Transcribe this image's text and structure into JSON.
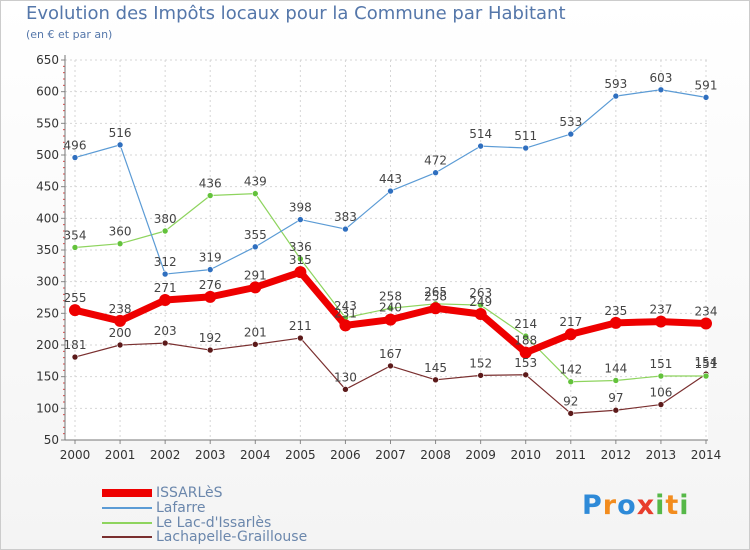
{
  "header": {
    "title": "Evolution des Impôts locaux pour la Commune par Habitant",
    "subtitle": "(en € et par an)"
  },
  "logo": {
    "letters": [
      "P",
      "r",
      "o",
      "x",
      "i",
      "t",
      "i"
    ],
    "colors": [
      "#2e8ad8",
      "#f28c1e",
      "#2e8ad8",
      "#e83d2c",
      "#56b848",
      "#f28c1e",
      "#56b848"
    ]
  },
  "chart_data": {
    "type": "line",
    "title": "Evolution des Impôts locaux pour la Commune par Habitant",
    "subtitle": "(en € et par an)",
    "xlabel": "",
    "ylabel": "",
    "categories": [
      "2000",
      "2001",
      "2002",
      "2003",
      "2004",
      "2005",
      "2006",
      "2007",
      "2008",
      "2009",
      "2010",
      "2011",
      "2012",
      "2013",
      "2014"
    ],
    "ylim": [
      50,
      650
    ],
    "yticks": [
      50,
      100,
      150,
      200,
      250,
      300,
      350,
      400,
      450,
      500,
      550,
      600,
      650
    ],
    "grid": true,
    "legend_position": "bottom-left",
    "series": [
      {
        "name": "ISSARLèS",
        "color": "#ee0000",
        "marker": "#ee0000",
        "width": 7,
        "markerRadius": 6,
        "values": [
          255,
          238,
          271,
          276,
          291,
          315,
          231,
          240,
          258,
          249,
          188,
          217,
          235,
          237,
          234
        ],
        "labels": [
          "255",
          "238",
          "271",
          "276",
          "291",
          "315",
          "231",
          "240",
          "258",
          "249",
          "188",
          "217",
          "235",
          "237",
          "234"
        ]
      },
      {
        "name": "Lafarre",
        "color": "#5b9bd5",
        "marker": "#2f6fbf",
        "width": 1.2,
        "markerRadius": 3,
        "values": [
          496,
          516,
          312,
          319,
          355,
          398,
          383,
          443,
          472,
          514,
          511,
          533,
          593,
          603,
          591
        ],
        "labels": [
          "496",
          "516",
          "312",
          "319",
          "355",
          "398",
          "383",
          "443",
          "472",
          "514",
          "511",
          "533",
          "593",
          "603",
          "591"
        ]
      },
      {
        "name": "Le Lac-d'Issarlès",
        "color": "#8ed45e",
        "marker": "#63c23b",
        "width": 1.2,
        "markerRadius": 3,
        "values": [
          354,
          360,
          380,
          436,
          439,
          336,
          243,
          258,
          265,
          263,
          214,
          142,
          144,
          151,
          151
        ],
        "labels": [
          "354",
          "360",
          "380",
          "436",
          "439",
          "336",
          "243",
          "258",
          "265",
          "263",
          "214",
          "142",
          "144",
          "151",
          "151"
        ]
      },
      {
        "name": "Lachapelle-Graillouse",
        "color": "#7a2f2f",
        "marker": "#5c1a1a",
        "width": 1.2,
        "markerRadius": 3,
        "values": [
          181,
          200,
          203,
          192,
          201,
          211,
          130,
          167,
          145,
          152,
          153,
          92,
          97,
          106,
          154
        ],
        "labels": [
          "181",
          "200",
          "203",
          "192",
          "201",
          "211",
          "130",
          "167",
          "145",
          "152",
          "153",
          "92",
          "97",
          "106",
          "154"
        ]
      }
    ]
  }
}
